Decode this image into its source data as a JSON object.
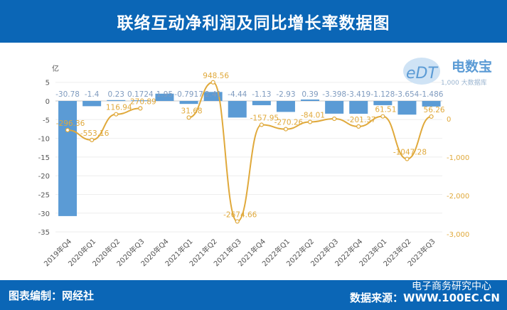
{
  "header": {
    "title": "联络互动净利润及同比增长率数据图"
  },
  "footer": {
    "left": "图表编制：网经社",
    "right": "数据来源：WWW.100EC.CN",
    "watermark": "电子商务研究中心"
  },
  "logo": {
    "brand": "电数宝",
    "sub": "1,000 大数据库",
    "mark": "eDT"
  },
  "colors": {
    "header": "#0b66b6",
    "bar": "#5b9bd5",
    "line": "#e0a93b",
    "bar_label": "#7f9bbf",
    "line_label": "#e0a93b"
  },
  "chart_data": {
    "type": "bar+line",
    "left_axis_unit": "亿",
    "categories": [
      "2019年Q4",
      "2020年Q1",
      "2020年Q2",
      "2020年Q3",
      "2020年Q4",
      "2021年Q1",
      "2021年Q2",
      "2021年Q3",
      "2021年Q4",
      "2022年Q1",
      "2022年Q2",
      "2022年Q3",
      "2022年Q4",
      "2023年Q1",
      "2023年Q2",
      "2023年Q3"
    ],
    "bars": {
      "values": [
        -30.78,
        -1.4,
        0.23,
        0.1724,
        1.95,
        -0.7917,
        2.41,
        -4.44,
        -1.13,
        -2.93,
        0.39,
        -3.398,
        -3.419,
        -1.128,
        -3.654,
        -1.486
      ],
      "labels": [
        "-30.78",
        "-1.4",
        "0.23",
        "0.1724",
        "1.95",
        "-0.7917",
        "2.41",
        "-4.44",
        "-1.13",
        "-2.93",
        "0.39",
        "-3.398",
        "-3.419",
        "-1.128",
        "-3.654",
        "-1.486"
      ]
    },
    "line": {
      "values": [
        -296.36,
        -553.16,
        116.94,
        270.89,
        null,
        31.68,
        948.56,
        -2674.66,
        -157.95,
        -270.26,
        -84.01,
        0,
        -201.37,
        61.51,
        -1047.28,
        56.26
      ],
      "labels": [
        "-296.36",
        "-553.16",
        "116.94",
        "270.89",
        "",
        "31.68",
        "948.56",
        "-2674.66",
        "-157.95",
        "-270.26",
        "-84.01",
        "",
        "-201.37",
        "61.51",
        "-1047.28",
        "56.26"
      ]
    },
    "left_ylim": [
      -35,
      5
    ],
    "left_ticks": [
      "5",
      "0",
      "-5",
      "-10",
      "-15",
      "-20",
      "-25",
      "-30",
      "-35"
    ],
    "right_ylim": [
      -3000,
      500
    ],
    "right_ticks": [
      "0",
      "-1,000",
      "-2,000",
      "-3,000"
    ],
    "grid": true
  }
}
